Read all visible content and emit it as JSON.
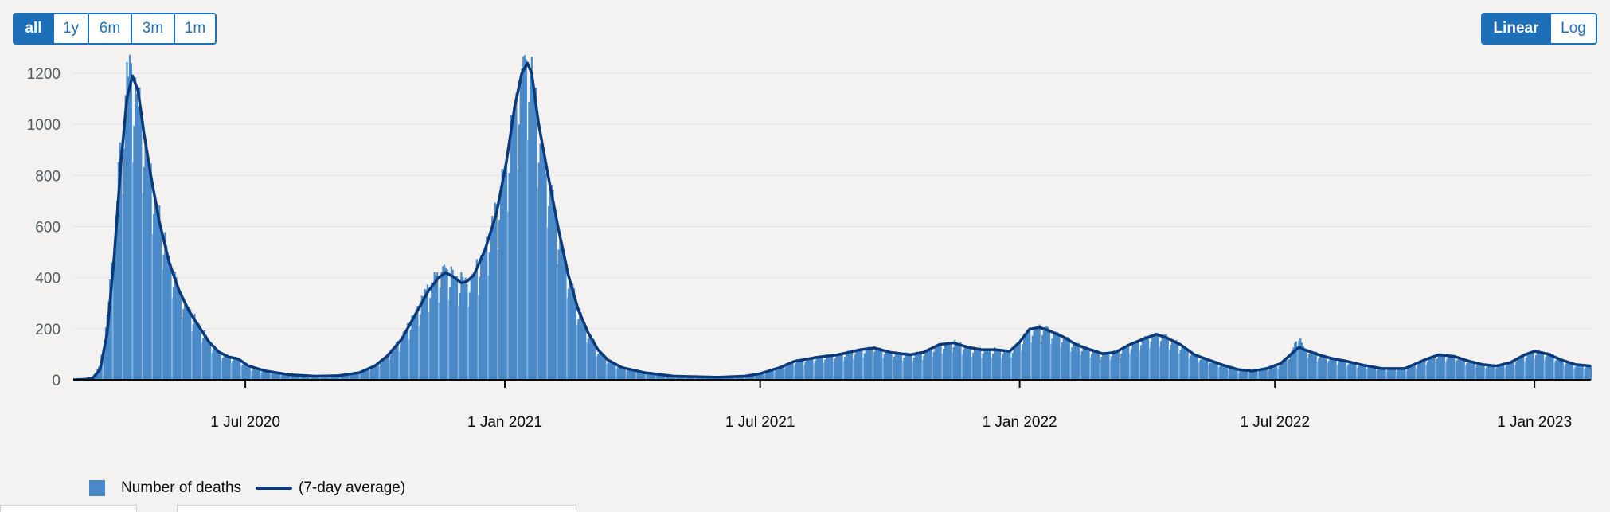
{
  "controls": {
    "range_buttons": [
      {
        "label": "all",
        "active": true
      },
      {
        "label": "1y",
        "active": false
      },
      {
        "label": "6m",
        "active": false
      },
      {
        "label": "3m",
        "active": false
      },
      {
        "label": "1m",
        "active": false
      }
    ],
    "scale_buttons": [
      {
        "label": "Linear",
        "active": true
      },
      {
        "label": "Log",
        "active": false
      }
    ]
  },
  "colors": {
    "bar": "#4a8ac9",
    "average_line": "#0b3a7a",
    "axis": "#0b0c0c",
    "grid": "#e2e2e2",
    "accent": "#1d70b8"
  },
  "chart_data": {
    "type": "bar",
    "title": "",
    "xlabel": "",
    "ylabel": "",
    "y_scale": "linear",
    "ylim": [
      0,
      1300
    ],
    "y_ticks": [
      0,
      200,
      400,
      600,
      800,
      1000,
      1200
    ],
    "xlim": [
      "2020-03-01",
      "2023-02-10"
    ],
    "x_ticks": [
      {
        "date": "2020-07-01",
        "label": "1 Jul 2020"
      },
      {
        "date": "2021-01-01",
        "label": "1 Jan 2021"
      },
      {
        "date": "2021-07-01",
        "label": "1 Jul 2021"
      },
      {
        "date": "2022-01-01",
        "label": "1 Jan 2022"
      },
      {
        "date": "2022-07-01",
        "label": "1 Jul 2022"
      },
      {
        "date": "2023-01-01",
        "label": "1 Jan 2023"
      }
    ],
    "grid": true,
    "legend_position": "bottom-left",
    "series": [
      {
        "name": "Number of deaths",
        "type": "bar",
        "points": [
          [
            "2020-03-01",
            0
          ],
          [
            "2020-03-10",
            2
          ],
          [
            "2020-03-15",
            10
          ],
          [
            "2020-03-20",
            60
          ],
          [
            "2020-03-25",
            250
          ],
          [
            "2020-03-30",
            600
          ],
          [
            "2020-04-04",
            950
          ],
          [
            "2020-04-08",
            1180
          ],
          [
            "2020-04-10",
            1285
          ],
          [
            "2020-04-12",
            1180
          ],
          [
            "2020-04-15",
            1150
          ],
          [
            "2020-04-20",
            980
          ],
          [
            "2020-04-25",
            820
          ],
          [
            "2020-05-01",
            650
          ],
          [
            "2020-05-08",
            480
          ],
          [
            "2020-05-15",
            360
          ],
          [
            "2020-05-22",
            280
          ],
          [
            "2020-05-29",
            220
          ],
          [
            "2020-06-05",
            160
          ],
          [
            "2020-06-12",
            110
          ],
          [
            "2020-06-19",
            90
          ],
          [
            "2020-06-26",
            85
          ],
          [
            "2020-07-03",
            50
          ],
          [
            "2020-07-15",
            35
          ],
          [
            "2020-08-01",
            20
          ],
          [
            "2020-08-20",
            14
          ],
          [
            "2020-09-05",
            18
          ],
          [
            "2020-09-20",
            30
          ],
          [
            "2020-10-01",
            60
          ],
          [
            "2020-10-10",
            100
          ],
          [
            "2020-10-20",
            170
          ],
          [
            "2020-10-31",
            280
          ],
          [
            "2020-11-08",
            370
          ],
          [
            "2020-11-15",
            420
          ],
          [
            "2020-11-20",
            440
          ],
          [
            "2020-11-25",
            420
          ],
          [
            "2020-11-30",
            400
          ],
          [
            "2020-12-05",
            390
          ],
          [
            "2020-12-10",
            420
          ],
          [
            "2020-12-18",
            530
          ],
          [
            "2020-12-26",
            680
          ],
          [
            "2021-01-02",
            880
          ],
          [
            "2021-01-08",
            1100
          ],
          [
            "2021-01-12",
            1200
          ],
          [
            "2021-01-16",
            1330
          ],
          [
            "2021-01-20",
            1230
          ],
          [
            "2021-01-25",
            1000
          ],
          [
            "2021-02-01",
            800
          ],
          [
            "2021-02-08",
            600
          ],
          [
            "2021-02-15",
            420
          ],
          [
            "2021-02-22",
            280
          ],
          [
            "2021-03-01",
            190
          ],
          [
            "2021-03-08",
            120
          ],
          [
            "2021-03-15",
            80
          ],
          [
            "2021-03-25",
            50
          ],
          [
            "2021-04-10",
            30
          ],
          [
            "2021-05-01",
            15
          ],
          [
            "2021-06-01",
            10
          ],
          [
            "2021-06-20",
            15
          ],
          [
            "2021-07-01",
            25
          ],
          [
            "2021-07-15",
            50
          ],
          [
            "2021-07-25",
            75
          ],
          [
            "2021-08-10",
            90
          ],
          [
            "2021-08-25",
            100
          ],
          [
            "2021-09-10",
            120
          ],
          [
            "2021-09-20",
            130
          ],
          [
            "2021-10-01",
            110
          ],
          [
            "2021-10-15",
            100
          ],
          [
            "2021-10-25",
            110
          ],
          [
            "2021-11-05",
            140
          ],
          [
            "2021-11-15",
            150
          ],
          [
            "2021-11-25",
            130
          ],
          [
            "2021-12-05",
            120
          ],
          [
            "2021-12-15",
            120
          ],
          [
            "2021-12-25",
            115
          ],
          [
            "2022-01-01",
            150
          ],
          [
            "2022-01-08",
            200
          ],
          [
            "2022-01-15",
            210
          ],
          [
            "2022-01-22",
            195
          ],
          [
            "2022-02-01",
            170
          ],
          [
            "2022-02-10",
            140
          ],
          [
            "2022-02-20",
            120
          ],
          [
            "2022-03-01",
            105
          ],
          [
            "2022-03-10",
            110
          ],
          [
            "2022-03-20",
            140
          ],
          [
            "2022-04-01",
            170
          ],
          [
            "2022-04-08",
            185
          ],
          [
            "2022-04-15",
            170
          ],
          [
            "2022-04-25",
            140
          ],
          [
            "2022-05-05",
            100
          ],
          [
            "2022-05-15",
            80
          ],
          [
            "2022-05-25",
            60
          ],
          [
            "2022-06-05",
            40
          ],
          [
            "2022-06-15",
            35
          ],
          [
            "2022-06-25",
            45
          ],
          [
            "2022-07-05",
            65
          ],
          [
            "2022-07-12",
            100
          ],
          [
            "2022-07-18",
            180
          ],
          [
            "2022-07-22",
            125
          ],
          [
            "2022-08-01",
            100
          ],
          [
            "2022-08-10",
            85
          ],
          [
            "2022-08-20",
            75
          ],
          [
            "2022-09-01",
            60
          ],
          [
            "2022-09-15",
            45
          ],
          [
            "2022-10-01",
            45
          ],
          [
            "2022-10-15",
            80
          ],
          [
            "2022-10-25",
            100
          ],
          [
            "2022-11-05",
            95
          ],
          [
            "2022-11-15",
            75
          ],
          [
            "2022-11-25",
            60
          ],
          [
            "2022-12-05",
            55
          ],
          [
            "2022-12-15",
            70
          ],
          [
            "2022-12-25",
            100
          ],
          [
            "2023-01-01",
            115
          ],
          [
            "2023-01-10",
            105
          ],
          [
            "2023-01-20",
            80
          ],
          [
            "2023-01-30",
            60
          ],
          [
            "2023-02-10",
            55
          ]
        ]
      },
      {
        "name": "(7-day average)",
        "type": "line",
        "points": [
          [
            "2020-03-01",
            0
          ],
          [
            "2020-03-10",
            2
          ],
          [
            "2020-03-15",
            8
          ],
          [
            "2020-03-20",
            40
          ],
          [
            "2020-03-25",
            180
          ],
          [
            "2020-03-30",
            480
          ],
          [
            "2020-04-04",
            860
          ],
          [
            "2020-04-08",
            1100
          ],
          [
            "2020-04-12",
            1190
          ],
          [
            "2020-04-16",
            1130
          ],
          [
            "2020-04-20",
            970
          ],
          [
            "2020-04-25",
            800
          ],
          [
            "2020-05-01",
            620
          ],
          [
            "2020-05-08",
            460
          ],
          [
            "2020-05-15",
            350
          ],
          [
            "2020-05-22",
            270
          ],
          [
            "2020-05-29",
            210
          ],
          [
            "2020-06-05",
            150
          ],
          [
            "2020-06-12",
            110
          ],
          [
            "2020-06-19",
            90
          ],
          [
            "2020-06-26",
            82
          ],
          [
            "2020-07-03",
            55
          ],
          [
            "2020-07-15",
            35
          ],
          [
            "2020-08-01",
            20
          ],
          [
            "2020-08-20",
            14
          ],
          [
            "2020-09-05",
            16
          ],
          [
            "2020-09-20",
            28
          ],
          [
            "2020-10-01",
            55
          ],
          [
            "2020-10-10",
            95
          ],
          [
            "2020-10-20",
            160
          ],
          [
            "2020-10-31",
            270
          ],
          [
            "2020-11-08",
            350
          ],
          [
            "2020-11-15",
            400
          ],
          [
            "2020-11-20",
            420
          ],
          [
            "2020-11-25",
            405
          ],
          [
            "2020-12-01",
            380
          ],
          [
            "2020-12-05",
            385
          ],
          [
            "2020-12-10",
            410
          ],
          [
            "2020-12-18",
            510
          ],
          [
            "2020-12-26",
            650
          ],
          [
            "2021-01-02",
            850
          ],
          [
            "2021-01-08",
            1070
          ],
          [
            "2021-01-13",
            1200
          ],
          [
            "2021-01-17",
            1240
          ],
          [
            "2021-01-20",
            1200
          ],
          [
            "2021-01-25",
            1000
          ],
          [
            "2021-02-01",
            790
          ],
          [
            "2021-02-08",
            590
          ],
          [
            "2021-02-15",
            410
          ],
          [
            "2021-02-22",
            275
          ],
          [
            "2021-03-01",
            185
          ],
          [
            "2021-03-08",
            118
          ],
          [
            "2021-03-15",
            78
          ],
          [
            "2021-03-25",
            48
          ],
          [
            "2021-04-10",
            28
          ],
          [
            "2021-05-01",
            14
          ],
          [
            "2021-06-01",
            10
          ],
          [
            "2021-06-20",
            14
          ],
          [
            "2021-07-01",
            24
          ],
          [
            "2021-07-15",
            48
          ],
          [
            "2021-07-25",
            72
          ],
          [
            "2021-08-10",
            88
          ],
          [
            "2021-08-25",
            98
          ],
          [
            "2021-09-10",
            118
          ],
          [
            "2021-09-20",
            125
          ],
          [
            "2021-10-01",
            108
          ],
          [
            "2021-10-15",
            98
          ],
          [
            "2021-10-25",
            108
          ],
          [
            "2021-11-05",
            138
          ],
          [
            "2021-11-15",
            145
          ],
          [
            "2021-11-25",
            128
          ],
          [
            "2021-12-05",
            118
          ],
          [
            "2021-12-15",
            118
          ],
          [
            "2021-12-25",
            112
          ],
          [
            "2022-01-01",
            148
          ],
          [
            "2022-01-08",
            198
          ],
          [
            "2022-01-15",
            205
          ],
          [
            "2022-01-22",
            192
          ],
          [
            "2022-02-01",
            168
          ],
          [
            "2022-02-10",
            138
          ],
          [
            "2022-02-20",
            118
          ],
          [
            "2022-03-01",
            102
          ],
          [
            "2022-03-10",
            108
          ],
          [
            "2022-03-20",
            138
          ],
          [
            "2022-04-01",
            165
          ],
          [
            "2022-04-08",
            178
          ],
          [
            "2022-04-15",
            165
          ],
          [
            "2022-04-25",
            138
          ],
          [
            "2022-05-05",
            98
          ],
          [
            "2022-05-15",
            78
          ],
          [
            "2022-05-25",
            58
          ],
          [
            "2022-06-05",
            40
          ],
          [
            "2022-06-15",
            34
          ],
          [
            "2022-06-25",
            44
          ],
          [
            "2022-07-05",
            64
          ],
          [
            "2022-07-12",
            98
          ],
          [
            "2022-07-18",
            128
          ],
          [
            "2022-07-22",
            118
          ],
          [
            "2022-08-01",
            98
          ],
          [
            "2022-08-10",
            84
          ],
          [
            "2022-08-20",
            74
          ],
          [
            "2022-09-01",
            58
          ],
          [
            "2022-09-15",
            44
          ],
          [
            "2022-10-01",
            44
          ],
          [
            "2022-10-15",
            78
          ],
          [
            "2022-10-25",
            98
          ],
          [
            "2022-11-05",
            92
          ],
          [
            "2022-11-15",
            74
          ],
          [
            "2022-11-25",
            60
          ],
          [
            "2022-12-05",
            54
          ],
          [
            "2022-12-15",
            68
          ],
          [
            "2022-12-25",
            98
          ],
          [
            "2023-01-01",
            112
          ],
          [
            "2023-01-10",
            102
          ],
          [
            "2023-01-20",
            78
          ],
          [
            "2023-01-30",
            60
          ],
          [
            "2023-02-10",
            54
          ]
        ]
      }
    ]
  }
}
